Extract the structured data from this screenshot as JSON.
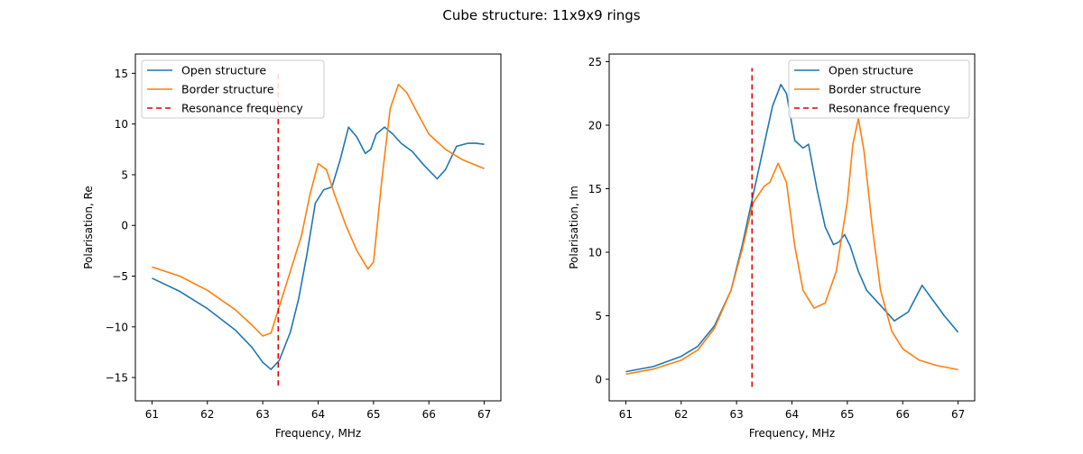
{
  "figure": {
    "title": "Cube structure: 11x9x9 rings"
  },
  "colors": {
    "open": "#1f77b4",
    "border": "#ff7f0e",
    "resonance": "#e00000"
  },
  "chart_data": [
    {
      "type": "line",
      "xlabel": "Frequency, MHz",
      "ylabel": "Polarisation, Re",
      "xlim": [
        60.7,
        67.3
      ],
      "ylim": [
        -17.3,
        16.9
      ],
      "xticks": [
        61,
        62,
        63,
        64,
        65,
        66,
        67
      ],
      "yticks": [
        -15,
        -10,
        -5,
        0,
        5,
        10,
        15
      ],
      "legend": "upper-left",
      "grid": false,
      "series": [
        {
          "name": "Open structure",
          "color_key": "open",
          "x": [
            61,
            61.5,
            62,
            62.5,
            62.8,
            63,
            63.15,
            63.3,
            63.5,
            63.65,
            63.8,
            63.95,
            64.1,
            64.25,
            64.4,
            64.55,
            64.7,
            64.85,
            64.95,
            65.05,
            65.2,
            65.35,
            65.5,
            65.7,
            65.9,
            66.15,
            66.3,
            66.5,
            66.7,
            66.85,
            67
          ],
          "y": [
            -5.2,
            -6.5,
            -8.2,
            -10.3,
            -12,
            -13.5,
            -14.2,
            -13.3,
            -10.5,
            -7.2,
            -2.8,
            2.2,
            3.5,
            3.8,
            6.5,
            9.7,
            8.7,
            7.1,
            7.5,
            9,
            9.7,
            9,
            8.1,
            7.3,
            6,
            4.6,
            5.5,
            7.8,
            8.1,
            8.1,
            8
          ]
        },
        {
          "name": "Border structure",
          "color_key": "border",
          "x": [
            61,
            61.5,
            62,
            62.5,
            62.8,
            63,
            63.15,
            63.3,
            63.5,
            63.7,
            63.85,
            64,
            64.15,
            64.3,
            64.5,
            64.7,
            64.9,
            65,
            65.15,
            65.3,
            65.45,
            65.6,
            65.8,
            66,
            66.3,
            66.6,
            67
          ],
          "y": [
            -4.1,
            -5,
            -6.4,
            -8.3,
            -9.8,
            -10.9,
            -10.6,
            -8,
            -4.5,
            -1,
            3,
            6.1,
            5.5,
            3,
            0,
            -2.5,
            -4.3,
            -3.6,
            4.5,
            11.5,
            13.9,
            13.1,
            11,
            9,
            7.5,
            6.5,
            5.6
          ]
        },
        {
          "name": "Resonance frequency",
          "color_key": "resonance",
          "dashed": true,
          "x": [
            63.28,
            63.28
          ],
          "y": [
            -15.8,
            15.2
          ]
        }
      ]
    },
    {
      "type": "line",
      "xlabel": "Frequency, MHz",
      "ylabel": "Polarisation, Im",
      "xlim": [
        60.7,
        67.3
      ],
      "ylim": [
        -1.7,
        25.6
      ],
      "xticks": [
        61,
        62,
        63,
        64,
        65,
        66,
        67
      ],
      "yticks": [
        0,
        5,
        10,
        15,
        20,
        25
      ],
      "legend": "upper-right",
      "grid": false,
      "series": [
        {
          "name": "Open structure",
          "color_key": "open",
          "x": [
            61,
            61.5,
            62,
            62.3,
            62.6,
            62.9,
            63.1,
            63.3,
            63.5,
            63.65,
            63.8,
            63.9,
            64.05,
            64.2,
            64.3,
            64.45,
            64.6,
            64.75,
            64.85,
            64.95,
            65.05,
            65.2,
            65.35,
            65.6,
            65.85,
            66.1,
            66.35,
            66.5,
            66.75,
            67
          ],
          "y": [
            0.6,
            1,
            1.8,
            2.6,
            4.2,
            7,
            10.5,
            14.5,
            18.5,
            21.5,
            23.2,
            22.5,
            18.8,
            18.2,
            18.5,
            15,
            12,
            10.6,
            10.8,
            11.4,
            10.5,
            8.5,
            7,
            5.8,
            4.6,
            5.3,
            7.4,
            6.5,
            5,
            3.7
          ]
        },
        {
          "name": "Border structure",
          "color_key": "border",
          "x": [
            61,
            61.5,
            62,
            62.3,
            62.6,
            62.9,
            63.1,
            63.3,
            63.5,
            63.6,
            63.75,
            63.9,
            64.05,
            64.2,
            64.4,
            64.6,
            64.8,
            65,
            65.1,
            65.2,
            65.3,
            65.45,
            65.6,
            65.8,
            66,
            66.3,
            66.6,
            67
          ],
          "y": [
            0.4,
            0.8,
            1.5,
            2.3,
            4,
            7,
            10.2,
            13.9,
            15.2,
            15.5,
            17,
            15.5,
            10.5,
            7,
            5.6,
            6,
            8.5,
            14,
            18.5,
            20.5,
            18,
            12,
            7,
            3.8,
            2.4,
            1.5,
            1.1,
            0.75
          ]
        },
        {
          "name": "Resonance frequency",
          "color_key": "resonance",
          "dashed": true,
          "x": [
            63.28,
            63.28
          ],
          "y": [
            -0.6,
            24.5
          ]
        }
      ]
    }
  ]
}
